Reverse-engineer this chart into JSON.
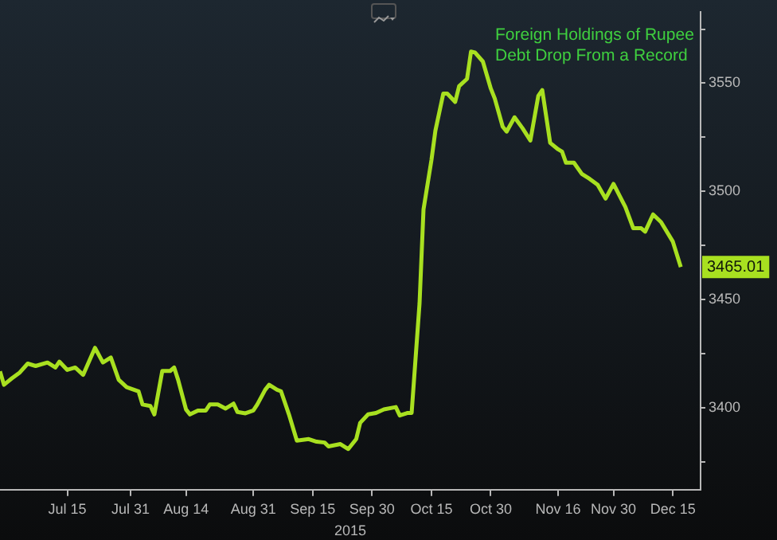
{
  "chart_data": {
    "type": "line",
    "title": "Foreign Holdings of Rupee Debt Drop From a Record",
    "xlabel": "2015",
    "x": [
      "2015-06-28",
      "2015-06-29",
      "2015-07-01",
      "2015-07-03",
      "2015-07-05",
      "2015-07-07",
      "2015-07-10",
      "2015-07-12",
      "2015-07-13",
      "2015-07-15",
      "2015-07-17",
      "2015-07-19",
      "2015-07-22",
      "2015-07-24",
      "2015-07-26",
      "2015-07-28",
      "2015-07-30",
      "2015-08-02",
      "2015-08-03",
      "2015-08-05",
      "2015-08-06",
      "2015-08-08",
      "2015-08-10",
      "2015-08-11",
      "2015-08-12",
      "2015-08-14",
      "2015-08-15",
      "2015-08-17",
      "2015-08-19",
      "2015-08-20",
      "2015-08-22",
      "2015-08-24",
      "2015-08-26",
      "2015-08-27",
      "2015-08-29",
      "2015-08-31",
      "2015-09-01",
      "2015-09-03",
      "2015-09-04",
      "2015-09-06",
      "2015-09-07",
      "2015-09-09",
      "2015-09-11",
      "2015-09-14",
      "2015-09-16",
      "2015-09-18",
      "2015-09-19",
      "2015-09-22",
      "2015-09-24",
      "2015-09-26",
      "2015-09-27",
      "2015-09-29",
      "2015-10-01",
      "2015-10-03",
      "2015-10-06",
      "2015-10-07",
      "2015-10-09",
      "2015-10-10",
      "2015-10-12",
      "2015-10-13",
      "2015-10-15",
      "2015-10-16",
      "2015-10-18",
      "2015-10-19",
      "2015-10-21",
      "2015-10-22",
      "2015-10-24",
      "2015-10-25",
      "2015-10-26",
      "2015-10-28",
      "2015-10-30",
      "2015-10-31",
      "2015-11-02",
      "2015-11-03",
      "2015-11-05",
      "2015-11-07",
      "2015-11-09",
      "2015-11-11",
      "2015-11-12",
      "2015-11-14",
      "2015-11-16",
      "2015-11-17",
      "2015-11-18",
      "2015-11-20",
      "2015-11-22",
      "2015-11-24",
      "2015-11-26",
      "2015-11-28",
      "2015-11-30",
      "2015-12-03",
      "2015-12-05",
      "2015-12-07",
      "2015-12-08",
      "2015-12-10",
      "2015-12-12",
      "2015-12-15",
      "2015-12-17"
    ],
    "series": [
      {
        "color": "#a8e020",
        "values": [
          3416.7,
          3410.5,
          3413.5,
          3416.2,
          3420.3,
          3419.2,
          3420.8,
          3418.5,
          3421.2,
          3417.4,
          3418.5,
          3415.1,
          3427.6,
          3420.8,
          3423.1,
          3412.8,
          3409.4,
          3407.5,
          3401.4,
          3400.7,
          3396.8,
          3416.9,
          3416.9,
          3418.5,
          3412.8,
          3399.1,
          3396.8,
          3398.6,
          3398.6,
          3401.4,
          3401.4,
          3399.5,
          3401.8,
          3397.9,
          3397.3,
          3398.6,
          3401.4,
          3408.2,
          3410.5,
          3408.2,
          3407.5,
          3396.8,
          3384.7,
          3385.4,
          3384.2,
          3383.8,
          3382.0,
          3383.1,
          3380.8,
          3385.4,
          3392.9,
          3396.8,
          3397.5,
          3399.1,
          3400.2,
          3396.3,
          3397.5,
          3397.5,
          3448.2,
          3491.6,
          3514.4,
          3528,
          3545.2,
          3545.2,
          3541.3,
          3548.6,
          3552,
          3564.6,
          3564.2,
          3560,
          3547.5,
          3542.9,
          3529.9,
          3527.6,
          3534.2,
          3529.2,
          3523.5,
          3544.1,
          3546.8,
          3522.4,
          3519.4,
          3518.3,
          3513.2,
          3513.2,
          3508,
          3505.7,
          3503,
          3496.6,
          3503.4,
          3492.7,
          3482.9,
          3482.9,
          3481.3,
          3489.3,
          3485.8,
          3476.7,
          3465.01
        ],
        "value_labels": [
          null,
          null,
          null,
          null,
          null,
          null,
          null,
          null,
          null,
          null,
          null,
          null,
          null,
          null,
          null,
          null,
          null,
          null,
          null,
          null,
          null,
          null,
          null,
          null,
          null,
          null,
          null,
          null,
          null,
          null,
          null,
          null,
          null,
          null,
          null,
          null,
          null,
          null,
          null,
          null,
          null,
          null,
          null,
          null,
          null,
          null,
          null,
          null,
          null,
          null,
          null,
          null,
          null,
          null,
          null,
          null,
          null,
          null,
          null,
          null,
          null,
          null,
          null,
          null,
          null,
          null,
          null,
          null,
          null,
          null,
          null,
          null,
          null,
          null,
          null,
          null,
          null,
          null,
          null,
          null,
          null,
          null,
          null,
          null,
          null,
          null,
          null,
          null,
          null,
          null,
          null,
          null,
          null,
          null,
          null,
          null,
          "3465.01"
        ]
      }
    ],
    "xlim": [
      "2015-06-28",
      "2015-12-22"
    ],
    "xticks": [
      {
        "value": "2015-07-15",
        "label": "Jul 15"
      },
      {
        "value": "2015-07-31",
        "label": "Jul 31"
      },
      {
        "value": "2015-08-14",
        "label": "Aug 14"
      },
      {
        "value": "2015-08-31",
        "label": "Aug 31"
      },
      {
        "value": "2015-09-15",
        "label": "Sep 15"
      },
      {
        "value": "2015-09-30",
        "label": "Sep 30"
      },
      {
        "value": "2015-10-15",
        "label": "Oct 15"
      },
      {
        "value": "2015-10-30",
        "label": "Oct 30"
      },
      {
        "value": "2015-11-16",
        "label": "Nov 16"
      },
      {
        "value": "2015-11-30",
        "label": "Nov 30"
      },
      {
        "value": "2015-12-15",
        "label": "Dec 15"
      }
    ],
    "ylim": [
      3362,
      3583
    ],
    "yticks": [
      {
        "value": 3375,
        "label": null
      },
      3400,
      {
        "value": 3425,
        "label": null
      },
      3450,
      {
        "value": 3475,
        "label": null
      },
      3500,
      {
        "value": 3525,
        "label": null
      },
      3550,
      {
        "value": 3575,
        "label": null
      }
    ],
    "grid": false,
    "legend": false,
    "marker": "none",
    "line_style": "solid"
  }
}
